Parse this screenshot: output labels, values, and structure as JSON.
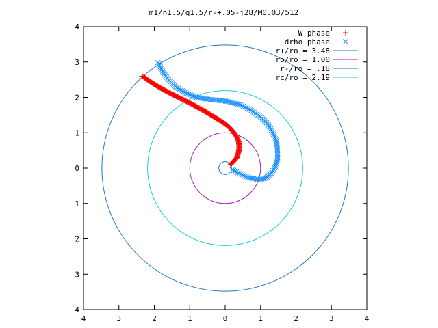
{
  "chart_data": {
    "type": "scatter",
    "title": "m1/n1.5/q1.5/r-+.05-j28/M0.03/512",
    "xlim": [
      -4,
      4
    ],
    "ylim": [
      -4,
      4
    ],
    "x_ticks": [
      -4,
      -3,
      -2,
      -1,
      0,
      1,
      2,
      3,
      4
    ],
    "y_ticks": [
      -4,
      -3,
      -2,
      -1,
      0,
      1,
      2,
      3,
      4
    ],
    "x_tick_labels": [
      "4",
      "3",
      "2",
      "1",
      "0",
      "1",
      "2",
      "3",
      "4"
    ],
    "y_tick_labels": [
      "4",
      "3",
      "2",
      "1",
      "0",
      "1",
      "2",
      "3",
      "4"
    ],
    "grid": false,
    "legend_position": "top-right",
    "series": [
      {
        "name": "W phase",
        "marker": "+",
        "color": "#ff0000",
        "points": [
          [
            0.15,
            0.1
          ],
          [
            0.25,
            0.2
          ],
          [
            0.33,
            0.3
          ],
          [
            0.38,
            0.45
          ],
          [
            0.4,
            0.6
          ],
          [
            0.38,
            0.75
          ],
          [
            0.33,
            0.88
          ],
          [
            0.25,
            1.0
          ],
          [
            0.15,
            1.12
          ],
          [
            0.0,
            1.25
          ],
          [
            -0.2,
            1.38
          ],
          [
            -0.4,
            1.5
          ],
          [
            -0.6,
            1.62
          ],
          [
            -0.8,
            1.73
          ],
          [
            -1.0,
            1.84
          ],
          [
            -1.2,
            1.94
          ],
          [
            -1.4,
            2.04
          ],
          [
            -1.6,
            2.14
          ],
          [
            -1.8,
            2.25
          ],
          [
            -2.0,
            2.37
          ],
          [
            -2.2,
            2.5
          ],
          [
            -2.3,
            2.58
          ],
          [
            -2.35,
            2.6
          ]
        ]
      },
      {
        "name": "drho phase",
        "marker": "x",
        "color": "#1e90ff",
        "points": [
          [
            0.2,
            -0.05
          ],
          [
            0.4,
            -0.15
          ],
          [
            0.6,
            -0.25
          ],
          [
            0.8,
            -0.3
          ],
          [
            1.0,
            -0.32
          ],
          [
            1.15,
            -0.28
          ],
          [
            1.3,
            -0.15
          ],
          [
            1.42,
            0.05
          ],
          [
            1.48,
            0.25
          ],
          [
            1.48,
            0.5
          ],
          [
            1.45,
            0.75
          ],
          [
            1.35,
            1.0
          ],
          [
            1.2,
            1.25
          ],
          [
            1.0,
            1.45
          ],
          [
            0.7,
            1.65
          ],
          [
            0.4,
            1.8
          ],
          [
            0.1,
            1.88
          ],
          [
            -0.2,
            1.92
          ],
          [
            -0.5,
            1.95
          ],
          [
            -0.8,
            2.0
          ],
          [
            -1.1,
            2.12
          ],
          [
            -1.4,
            2.3
          ],
          [
            -1.6,
            2.5
          ],
          [
            -1.75,
            2.7
          ],
          [
            -1.85,
            2.9
          ],
          [
            -1.9,
            2.98
          ]
        ]
      }
    ],
    "circles": [
      {
        "name": "r+/ro = 3.48",
        "radius": 3.48,
        "color": "#1e78c8"
      },
      {
        "name": "ro/ro = 1.00",
        "radius": 1.0,
        "color": "#a020c0"
      },
      {
        "name": "r-/ro = .18",
        "radius": 0.18,
        "color": "#1e78c8"
      },
      {
        "name": "rc/ro = 2.19",
        "radius": 2.19,
        "color": "#18d0d8"
      }
    ]
  }
}
